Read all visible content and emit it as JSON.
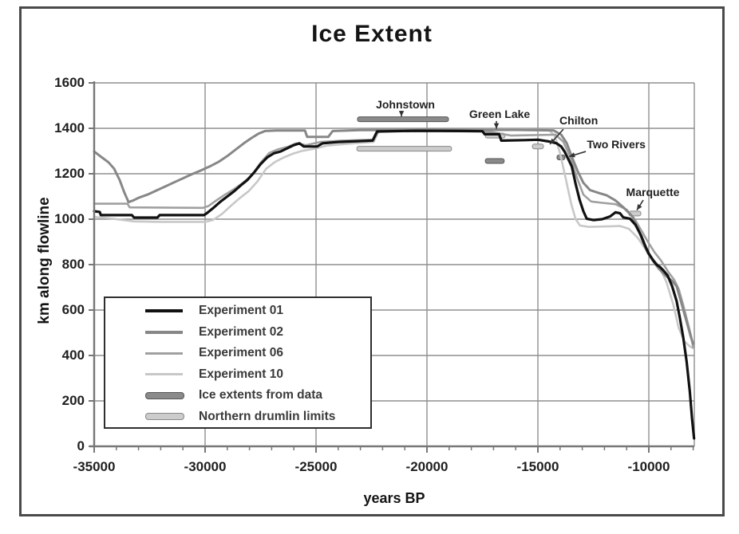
{
  "chart_data": {
    "type": "line",
    "title": "Ice Extent",
    "xlabel": "years BP",
    "ylabel": "km along flowline",
    "xlim": [
      -35000,
      -7950
    ],
    "ylim": [
      0,
      1600
    ],
    "grid": true,
    "x_major_ticks": [
      -35000,
      -30000,
      -25000,
      -20000,
      -15000,
      -10000
    ],
    "x_tick_labels": [
      "-35000",
      "-30000",
      "-25000",
      "-20000",
      "-15000",
      "-10000"
    ],
    "x_minor_step": 1000,
    "y_ticks": [
      0,
      200,
      400,
      600,
      800,
      1000,
      1200,
      1400,
      1600
    ],
    "y_tick_labels": [
      "0",
      "200",
      "400",
      "600",
      "800",
      "1000",
      "1200",
      "1400",
      "1600"
    ],
    "legend_position": "lower-left",
    "colors": {
      "experiment01": "#111111",
      "experiment02": "#878787",
      "experiment06": "#a0a0a0",
      "experiment10": "#c8c8c8",
      "ice_extent_fill": "#8a8a8a",
      "ice_extent_stroke": "#555555",
      "drumlin_fill": "#cccccc",
      "drumlin_stroke": "#888888",
      "gridline": "#8f8f8f",
      "axis": "#777777",
      "annotation": "#333333"
    },
    "series": [
      {
        "name": "Experiment 01",
        "color": "#111111",
        "width": 3.2,
        "points": [
          [
            -35000,
            1035
          ],
          [
            -34750,
            1032
          ],
          [
            -34700,
            1018
          ],
          [
            -33300,
            1018
          ],
          [
            -33200,
            1007
          ],
          [
            -32150,
            1007
          ],
          [
            -32050,
            1018
          ],
          [
            -30050,
            1018
          ],
          [
            -29900,
            1028
          ],
          [
            -29600,
            1052
          ],
          [
            -29300,
            1078
          ],
          [
            -29000,
            1100
          ],
          [
            -28700,
            1122
          ],
          [
            -28400,
            1148
          ],
          [
            -28100,
            1172
          ],
          [
            -27800,
            1205
          ],
          [
            -27500,
            1242
          ],
          [
            -27200,
            1272
          ],
          [
            -26900,
            1290
          ],
          [
            -26600,
            1298
          ],
          [
            -26300,
            1312
          ],
          [
            -26000,
            1326
          ],
          [
            -25750,
            1334
          ],
          [
            -25550,
            1320
          ],
          [
            -24950,
            1320
          ],
          [
            -24700,
            1334
          ],
          [
            -24000,
            1340
          ],
          [
            -22450,
            1346
          ],
          [
            -22250,
            1386
          ],
          [
            -20500,
            1389
          ],
          [
            -18500,
            1388
          ],
          [
            -17500,
            1387
          ],
          [
            -17400,
            1374
          ],
          [
            -16750,
            1374
          ],
          [
            -16650,
            1346
          ],
          [
            -15600,
            1348
          ],
          [
            -15000,
            1350
          ],
          [
            -14500,
            1342
          ],
          [
            -14160,
            1334
          ],
          [
            -13950,
            1320
          ],
          [
            -13800,
            1298
          ],
          [
            -13620,
            1262
          ],
          [
            -13470,
            1232
          ],
          [
            -13300,
            1155
          ],
          [
            -13120,
            1085
          ],
          [
            -12950,
            1035
          ],
          [
            -12800,
            1002
          ],
          [
            -12500,
            996
          ],
          [
            -12100,
            1000
          ],
          [
            -11750,
            1012
          ],
          [
            -11500,
            1030
          ],
          [
            -11300,
            1026
          ],
          [
            -11150,
            1008
          ],
          [
            -10850,
            1002
          ],
          [
            -10600,
            975
          ],
          [
            -10350,
            928
          ],
          [
            -10150,
            880
          ],
          [
            -10000,
            848
          ],
          [
            -9800,
            818
          ],
          [
            -9650,
            800
          ],
          [
            -9500,
            790
          ],
          [
            -9350,
            775
          ],
          [
            -9150,
            752
          ],
          [
            -8950,
            705
          ],
          [
            -8750,
            640
          ],
          [
            -8600,
            565
          ],
          [
            -8450,
            480
          ],
          [
            -8300,
            375
          ],
          [
            -8150,
            240
          ],
          [
            -8050,
            120
          ],
          [
            -7960,
            35
          ]
        ]
      },
      {
        "name": "Experiment 02",
        "color": "#878787",
        "width": 3,
        "points": [
          [
            -35000,
            1298
          ],
          [
            -34650,
            1272
          ],
          [
            -34350,
            1250
          ],
          [
            -34100,
            1222
          ],
          [
            -33850,
            1172
          ],
          [
            -33650,
            1120
          ],
          [
            -33450,
            1075
          ],
          [
            -33250,
            1082
          ],
          [
            -33000,
            1094
          ],
          [
            -32600,
            1108
          ],
          [
            -32200,
            1126
          ],
          [
            -31800,
            1144
          ],
          [
            -31400,
            1162
          ],
          [
            -31000,
            1180
          ],
          [
            -30600,
            1198
          ],
          [
            -30200,
            1214
          ],
          [
            -29800,
            1232
          ],
          [
            -29400,
            1252
          ],
          [
            -29000,
            1278
          ],
          [
            -28600,
            1308
          ],
          [
            -28200,
            1338
          ],
          [
            -27900,
            1358
          ],
          [
            -27600,
            1376
          ],
          [
            -27300,
            1388
          ],
          [
            -26800,
            1390
          ],
          [
            -25500,
            1390
          ],
          [
            -25400,
            1362
          ],
          [
            -24450,
            1362
          ],
          [
            -24250,
            1388
          ],
          [
            -23000,
            1392
          ],
          [
            -20000,
            1393
          ],
          [
            -16000,
            1393
          ],
          [
            -14300,
            1391
          ],
          [
            -13950,
            1372
          ],
          [
            -13700,
            1335
          ],
          [
            -13450,
            1270
          ],
          [
            -13200,
            1210
          ],
          [
            -12950,
            1160
          ],
          [
            -12650,
            1128
          ],
          [
            -12250,
            1115
          ],
          [
            -11900,
            1105
          ],
          [
            -11500,
            1082
          ],
          [
            -11100,
            1048
          ],
          [
            -10750,
            1012
          ],
          [
            -10500,
            962
          ],
          [
            -10250,
            895
          ],
          [
            -10050,
            852
          ],
          [
            -9800,
            815
          ],
          [
            -9550,
            782
          ],
          [
            -9250,
            752
          ],
          [
            -8950,
            728
          ],
          [
            -8750,
            705
          ],
          [
            -8600,
            655
          ],
          [
            -8400,
            585
          ],
          [
            -8250,
            532
          ],
          [
            -8100,
            480
          ],
          [
            -8000,
            452
          ]
        ]
      },
      {
        "name": "Experiment 06",
        "color": "#a0a0a0",
        "width": 2.6,
        "points": [
          [
            -35000,
            1068
          ],
          [
            -33500,
            1068
          ],
          [
            -33400,
            1052
          ],
          [
            -30100,
            1050
          ],
          [
            -29850,
            1058
          ],
          [
            -29500,
            1082
          ],
          [
            -29100,
            1108
          ],
          [
            -28700,
            1132
          ],
          [
            -28300,
            1160
          ],
          [
            -27900,
            1192
          ],
          [
            -27500,
            1248
          ],
          [
            -27100,
            1292
          ],
          [
            -26700,
            1308
          ],
          [
            -26300,
            1318
          ],
          [
            -25900,
            1334
          ],
          [
            -25450,
            1326
          ],
          [
            -24800,
            1340
          ],
          [
            -23800,
            1346
          ],
          [
            -22400,
            1350
          ],
          [
            -22200,
            1387
          ],
          [
            -18000,
            1390
          ],
          [
            -17000,
            1382
          ],
          [
            -16200,
            1368
          ],
          [
            -15300,
            1370
          ],
          [
            -14200,
            1372
          ],
          [
            -13850,
            1340
          ],
          [
            -13550,
            1275
          ],
          [
            -13250,
            1185
          ],
          [
            -12950,
            1108
          ],
          [
            -12600,
            1078
          ],
          [
            -12100,
            1072
          ],
          [
            -11500,
            1066
          ],
          [
            -11000,
            1042
          ],
          [
            -10650,
            1002
          ],
          [
            -10350,
            952
          ],
          [
            -10050,
            902
          ],
          [
            -9750,
            855
          ],
          [
            -9450,
            818
          ],
          [
            -9100,
            765
          ],
          [
            -8850,
            732
          ],
          [
            -8650,
            692
          ],
          [
            -8450,
            622
          ],
          [
            -8250,
            545
          ],
          [
            -8100,
            488
          ],
          [
            -8000,
            435
          ]
        ]
      },
      {
        "name": "Experiment 10",
        "color": "#c8c8c8",
        "width": 2.6,
        "points": [
          [
            -35000,
            1010
          ],
          [
            -34400,
            1005
          ],
          [
            -33200,
            990
          ],
          [
            -32000,
            988
          ],
          [
            -30000,
            988
          ],
          [
            -29650,
            996
          ],
          [
            -29250,
            1022
          ],
          [
            -28850,
            1058
          ],
          [
            -28450,
            1092
          ],
          [
            -28050,
            1122
          ],
          [
            -27650,
            1165
          ],
          [
            -27250,
            1222
          ],
          [
            -26850,
            1252
          ],
          [
            -26450,
            1272
          ],
          [
            -26050,
            1288
          ],
          [
            -25650,
            1300
          ],
          [
            -25100,
            1310
          ],
          [
            -24500,
            1324
          ],
          [
            -23600,
            1332
          ],
          [
            -22400,
            1340
          ],
          [
            -22150,
            1392
          ],
          [
            -19000,
            1394
          ],
          [
            -15600,
            1395
          ],
          [
            -14500,
            1392
          ],
          [
            -14250,
            1368
          ],
          [
            -14000,
            1290
          ],
          [
            -13750,
            1180
          ],
          [
            -13500,
            1068
          ],
          [
            -13300,
            1000
          ],
          [
            -13100,
            972
          ],
          [
            -12700,
            966
          ],
          [
            -11900,
            968
          ],
          [
            -11300,
            970
          ],
          [
            -10900,
            958
          ],
          [
            -10500,
            918
          ],
          [
            -10150,
            868
          ],
          [
            -9850,
            828
          ],
          [
            -9550,
            795
          ],
          [
            -9200,
            722
          ],
          [
            -8900,
            625
          ],
          [
            -8650,
            520
          ],
          [
            -8400,
            462
          ],
          [
            -8150,
            440
          ],
          [
            -8000,
            432
          ]
        ]
      }
    ],
    "markers": [
      {
        "type": "ice_extent",
        "label": "Johnstown",
        "x1": -23130,
        "x2": -19030,
        "y": 1440
      },
      {
        "type": "drumlin",
        "label": "",
        "x1": -23160,
        "x2": -18890,
        "y": 1310
      },
      {
        "type": "drumlin",
        "label": "Green Lake",
        "x1": -17370,
        "x2": -16480,
        "y": 1368
      },
      {
        "type": "ice_extent",
        "label": "",
        "x1": -17370,
        "x2": -16520,
        "y": 1256
      },
      {
        "type": "drumlin",
        "label": "Chilton",
        "x1": -15250,
        "x2": -14750,
        "y": 1320
      },
      {
        "type": "ice_extent",
        "label": "Two Rivers",
        "x1": -14140,
        "x2": -13780,
        "y": 1272
      },
      {
        "type": "drumlin",
        "label": "Marquette",
        "x1": -10900,
        "x2": -10360,
        "y": 1025
      }
    ],
    "annotations": [
      {
        "text": "Johnstown",
        "tx": -20970,
        "ty": 1505,
        "ax1": -21150,
        "ay1": 1477,
        "ax2": -21150,
        "ay2": 1452
      },
      {
        "text": "Green Lake",
        "tx": -16725,
        "ty": 1463,
        "ax1": -16870,
        "ay1": 1432,
        "ax2": -16870,
        "ay2": 1398
      },
      {
        "text": "Chilton",
        "tx": -13160,
        "ty": 1435,
        "ax1": -13850,
        "ay1": 1396,
        "ax2": -14460,
        "ay2": 1330
      },
      {
        "text": "Two Rivers",
        "tx": -11470,
        "ty": 1330,
        "ax1": -12840,
        "ay1": 1298,
        "ax2": -13590,
        "ay2": 1276
      },
      {
        "text": "Marquette",
        "tx": -9820,
        "ty": 1119,
        "ax1": -10250,
        "ay1": 1084,
        "ax2": -10540,
        "ay2": 1040
      }
    ],
    "legend": [
      {
        "label": "Experiment 01",
        "swatch": "line",
        "color": "#111111",
        "thickness": 4
      },
      {
        "label": "Experiment 02",
        "swatch": "line",
        "color": "#878787",
        "thickness": 4
      },
      {
        "label": "Experiment 06",
        "swatch": "line",
        "color": "#a0a0a0",
        "thickness": 3
      },
      {
        "label": "Experiment 10",
        "swatch": "line",
        "color": "#c8c8c8",
        "thickness": 3
      },
      {
        "label": "Ice extents from data",
        "swatch": "bar",
        "color": "#8a8a8a",
        "stroke": "#555555",
        "thickness": 7
      },
      {
        "label": "Northern drumlin limits",
        "swatch": "bar",
        "color": "#cccccc",
        "stroke": "#888888",
        "thickness": 7
      }
    ]
  }
}
